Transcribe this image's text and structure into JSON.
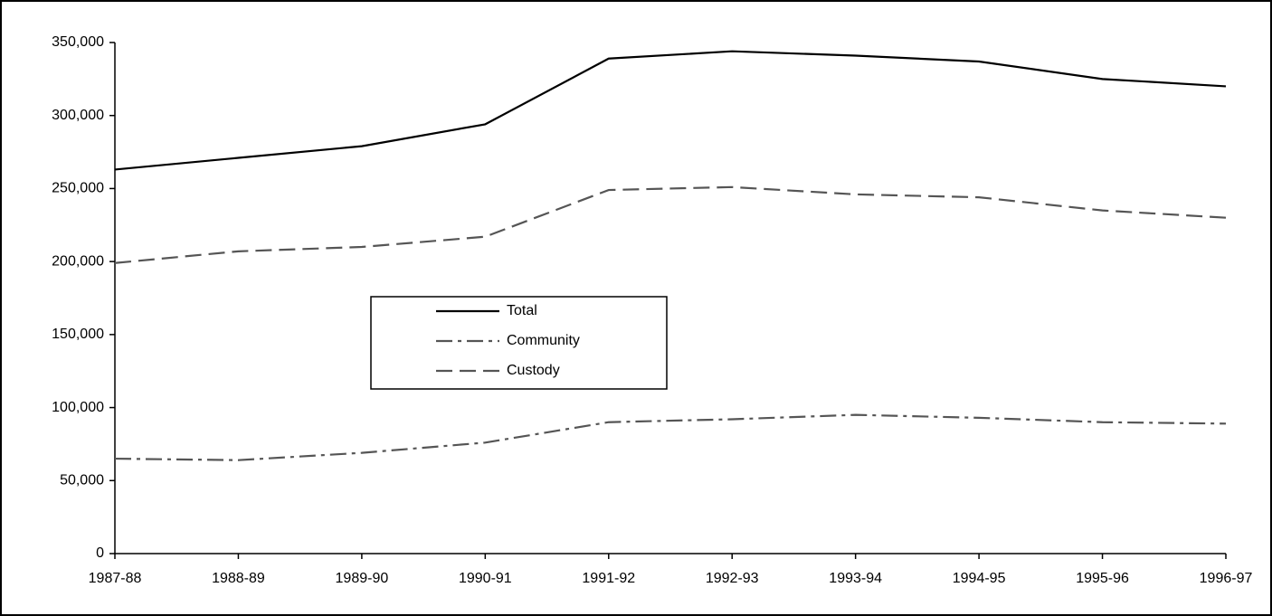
{
  "chart_data": {
    "type": "line",
    "categories": [
      "1987-88",
      "1988-89",
      "1989-90",
      "1990-91",
      "1991-92",
      "1992-93",
      "1993-94",
      "1994-95",
      "1995-96",
      "1996-97"
    ],
    "series": [
      {
        "name": "Total",
        "color": "#000000",
        "dash": "solid",
        "values": [
          263000,
          271000,
          279000,
          294000,
          339000,
          344000,
          341000,
          337000,
          325000,
          320000
        ]
      },
      {
        "name": "Community",
        "color": "#555555",
        "dash": "dashdot",
        "values": [
          65000,
          64000,
          69000,
          76000,
          90000,
          92000,
          95000,
          93000,
          90000,
          89000
        ]
      },
      {
        "name": "Custody",
        "color": "#555555",
        "dash": "dashed",
        "values": [
          199000,
          207000,
          210000,
          217000,
          249000,
          251000,
          246000,
          244000,
          235000,
          230000
        ]
      }
    ],
    "ylim": [
      0,
      350000
    ],
    "yticks": [
      0,
      {
        "value": 50000,
        "label": "50,000"
      },
      {
        "value": 100000,
        "label": "100,000"
      },
      {
        "value": 150000,
        "label": "150,000"
      },
      {
        "value": 200000,
        "label": "200,000"
      },
      {
        "value": 250000,
        "label": "250,000"
      },
      {
        "value": 300000,
        "label": "300,000"
      },
      {
        "value": 350000,
        "label": "350,000"
      }
    ],
    "grid": false
  }
}
